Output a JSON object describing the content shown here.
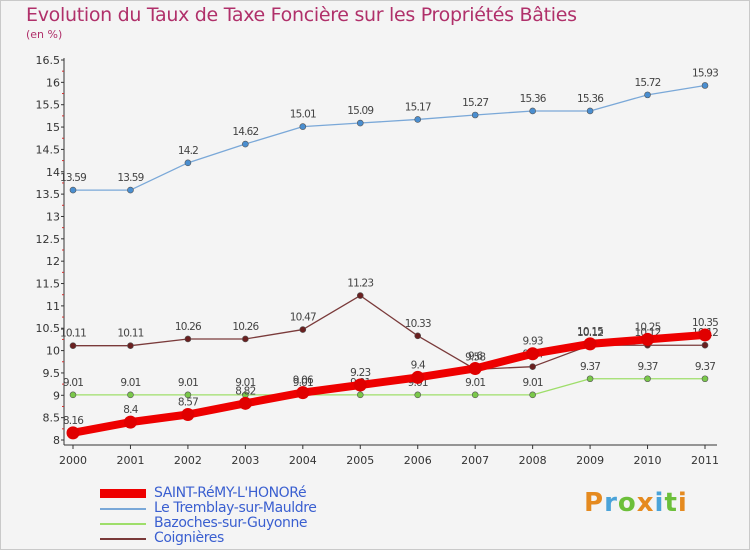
{
  "title": "Evolution du Taux de Taxe Foncière sur les Propriétés Bâties",
  "unit_label": "(en %)",
  "logo": {
    "text": "Proxiti",
    "colors": [
      "#e58a1f",
      "#4aa3d9",
      "#6cbf3a",
      "#e58a1f",
      "#4aa3d9",
      "#6cbf3a",
      "#e58a1f"
    ]
  },
  "chart_data": {
    "type": "line",
    "x": [
      "2000",
      "2001",
      "2002",
      "2003",
      "2004",
      "2005",
      "2006",
      "2007",
      "2008",
      "2009",
      "2010",
      "2011"
    ],
    "ylim": [
      8,
      16.5
    ],
    "yticks": [
      "8",
      "8.5",
      "9",
      "9.5",
      "10",
      "10.5",
      "11",
      "11.5",
      "12",
      "12.5",
      "13",
      "13.5",
      "14",
      "14.5",
      "15",
      "15.5",
      "16",
      "16.5"
    ],
    "grid": false,
    "legend_position": "bottom-left",
    "series": [
      {
        "name": "Le Tremblay-sur-Mauldre",
        "color": "#7aa8d8",
        "marker": "#4a8ed0",
        "values": [
          13.59,
          13.59,
          14.2,
          14.62,
          15.01,
          15.09,
          15.17,
          15.27,
          15.36,
          15.36,
          15.72,
          15.93
        ],
        "labels": [
          "13.59",
          "13.59",
          "14.2",
          "14.62",
          "15.01",
          "15.09",
          "15.17",
          "15.27",
          "15.36",
          "15.36",
          "15.72",
          "15.93"
        ]
      },
      {
        "name": "Coignières",
        "color": "#7a3a3a",
        "marker": "#6a2020",
        "values": [
          10.11,
          10.11,
          10.26,
          10.26,
          10.47,
          11.23,
          10.33,
          9.58,
          9.64,
          10.12,
          10.12,
          10.12
        ],
        "labels": [
          "10.11",
          "10.11",
          "10.26",
          "10.26",
          "10.47",
          "11.23",
          "10.33",
          "9.58",
          "9.64",
          "10.12",
          "10.12",
          "10.12"
        ]
      },
      {
        "name": "Bazoches-sur-Guyonne",
        "color": "#9ede6a",
        "marker": "#7ac84a",
        "values": [
          9.01,
          9.01,
          9.01,
          9.01,
          9.01,
          9.01,
          9.01,
          9.01,
          9.01,
          9.37,
          9.37,
          9.37
        ],
        "labels": [
          "9.01",
          "9.01",
          "9.01",
          "9.01",
          "9.01",
          "9.01",
          "9.01",
          "9.01",
          "9.01",
          "9.37",
          "9.37",
          "9.37"
        ]
      },
      {
        "name": "SAINT-RéMY-L'HONORé",
        "color": "#ee0000",
        "marker": "#e00000",
        "values": [
          8.16,
          8.4,
          8.57,
          8.82,
          9.06,
          9.23,
          9.4,
          9.6,
          9.93,
          10.15,
          10.25,
          10.35
        ],
        "labels": [
          "8.16",
          "8.4",
          "8.57",
          "8.82",
          "9.06",
          "9.23",
          "9.4",
          "9.6",
          "9.93",
          "10.15",
          "10.25",
          "10.35"
        ]
      }
    ]
  },
  "legend": [
    {
      "label": "SAINT-RéMY-L'HONORé",
      "color": "#ee0000",
      "thick": true
    },
    {
      "label": "Le Tremblay-sur-Mauldre",
      "color": "#7aa8d8",
      "thick": false
    },
    {
      "label": "Bazoches-sur-Guyonne",
      "color": "#9ede6a",
      "thick": false
    },
    {
      "label": "Coignières",
      "color": "#7a3a3a",
      "thick": false
    }
  ]
}
